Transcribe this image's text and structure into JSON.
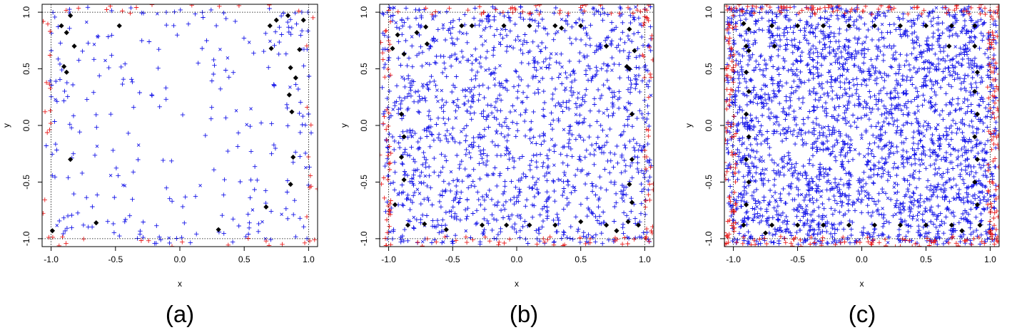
{
  "figure": {
    "colors": {
      "interior": "#1515e8",
      "outside": "#ea1e1e",
      "selected": "#000000",
      "frame": "#000000"
    }
  },
  "chart_data": [
    {
      "type": "scatter",
      "panel_label": "(a)",
      "xlabel": "x",
      "ylabel": "y",
      "xlim": [
        -1.07,
        1.07
      ],
      "ylim": [
        -1.07,
        1.07
      ],
      "xticks": [
        "-1.0",
        "-0.5",
        "0.0",
        "0.5",
        "1.0"
      ],
      "yticks": [
        "-1.0",
        "-0.5",
        "0.0",
        "0.5",
        "1.0"
      ],
      "reference_lines": {
        "x": [
          -1.0,
          1.0
        ],
        "y": [
          -1.0,
          1.0
        ],
        "style": "dotted"
      },
      "grid": false,
      "legend": "none",
      "point_count_estimate": {
        "interior": 290,
        "outside": 55
      },
      "selected_points": [
        [
          -0.92,
          0.88
        ],
        [
          -0.88,
          0.82
        ],
        [
          -0.85,
          0.97
        ],
        [
          -0.82,
          0.7
        ],
        [
          -0.9,
          0.52
        ],
        [
          -0.88,
          0.47
        ],
        [
          -0.47,
          0.88
        ],
        [
          -0.85,
          -0.3
        ],
        [
          -0.65,
          -0.86
        ],
        [
          -0.99,
          -0.93
        ],
        [
          0.67,
          -0.72
        ],
        [
          0.3,
          -0.92
        ],
        [
          0.86,
          0.51
        ],
        [
          0.9,
          0.42
        ],
        [
          0.85,
          0.27
        ],
        [
          0.87,
          0.12
        ],
        [
          0.88,
          -0.28
        ],
        [
          0.86,
          -0.52
        ],
        [
          0.93,
          0.67
        ],
        [
          0.96,
          0.93
        ],
        [
          0.7,
          0.88
        ],
        [
          0.75,
          0.93
        ],
        [
          0.71,
          0.68
        ],
        [
          0.84,
          0.97
        ]
      ]
    },
    {
      "type": "scatter",
      "panel_label": "(b)",
      "xlabel": "x",
      "ylabel": "y",
      "xlim": [
        -1.07,
        1.07
      ],
      "ylim": [
        -1.07,
        1.07
      ],
      "xticks": [
        "-1.0",
        "-0.5",
        "0.0",
        "0.5",
        "1.0"
      ],
      "yticks": [
        "-1.0",
        "-0.5",
        "0.0",
        "0.5",
        "1.0"
      ],
      "reference_lines": {
        "x": [
          -1.0,
          1.0
        ],
        "y": [
          -1.0,
          1.0
        ],
        "style": "dotted"
      },
      "grid": false,
      "legend": "none",
      "point_count_estimate": {
        "interior": 1400,
        "outside": 160
      },
      "selected_points": [
        [
          -0.97,
          0.68
        ],
        [
          -0.88,
          0.63
        ],
        [
          -0.93,
          0.8
        ],
        [
          -0.71,
          0.87
        ],
        [
          -0.7,
          0.72
        ],
        [
          -0.78,
          0.82
        ],
        [
          -0.43,
          0.88
        ],
        [
          -0.35,
          0.88
        ],
        [
          -0.1,
          0.88
        ],
        [
          0.1,
          0.88
        ],
        [
          0.3,
          0.88
        ],
        [
          0.35,
          0.86
        ],
        [
          0.5,
          0.88
        ],
        [
          0.7,
          0.7
        ],
        [
          0.88,
          0.85
        ],
        [
          0.88,
          0.5
        ],
        [
          0.86,
          0.52
        ],
        [
          0.92,
          0.66
        ],
        [
          -0.88,
          -0.1
        ],
        [
          -0.9,
          -0.28
        ],
        [
          -0.88,
          -0.48
        ],
        [
          -0.9,
          0.1
        ],
        [
          0.9,
          0.1
        ],
        [
          0.9,
          -0.3
        ],
        [
          0.88,
          -0.52
        ],
        [
          0.9,
          -0.68
        ],
        [
          -0.95,
          -0.7
        ],
        [
          -0.85,
          -0.88
        ],
        [
          -0.72,
          -0.87
        ],
        [
          -0.55,
          -0.92
        ],
        [
          -0.27,
          -0.88
        ],
        [
          -0.08,
          -0.88
        ],
        [
          0.1,
          -0.88
        ],
        [
          0.3,
          -0.88
        ],
        [
          0.5,
          -0.85
        ],
        [
          0.7,
          -0.88
        ],
        [
          0.87,
          -0.85
        ],
        [
          0.95,
          -0.88
        ],
        [
          0.78,
          -0.93
        ]
      ]
    },
    {
      "type": "scatter",
      "panel_label": "(c)",
      "xlabel": "x",
      "ylabel": "y",
      "xlim": [
        -1.07,
        1.07
      ],
      "ylim": [
        -1.07,
        1.07
      ],
      "xticks": [
        "-1.0",
        "-0.5",
        "0.0",
        "0.5",
        "1.0"
      ],
      "yticks": [
        "-1.0",
        "-0.5",
        "0.0",
        "0.5",
        "1.0"
      ],
      "reference_lines": {
        "x": [
          -1.0,
          1.0
        ],
        "y": [
          -1.0,
          1.0
        ],
        "style": "dotted"
      },
      "grid": false,
      "legend": "none",
      "point_count_estimate": {
        "interior": 2600,
        "outside": 330
      },
      "selected_points": [
        [
          -0.92,
          0.9
        ],
        [
          -0.88,
          0.85
        ],
        [
          -0.9,
          0.7
        ],
        [
          -0.88,
          0.66
        ],
        [
          -0.7,
          0.88
        ],
        [
          -0.68,
          0.7
        ],
        [
          -0.5,
          0.88
        ],
        [
          -0.3,
          0.88
        ],
        [
          -0.1,
          0.88
        ],
        [
          0.1,
          0.88
        ],
        [
          0.3,
          0.88
        ],
        [
          0.5,
          0.88
        ],
        [
          0.7,
          0.88
        ],
        [
          0.88,
          0.88
        ],
        [
          0.68,
          0.7
        ],
        [
          0.88,
          0.7
        ],
        [
          -0.9,
          0.47
        ],
        [
          -0.88,
          0.3
        ],
        [
          -0.9,
          0.1
        ],
        [
          -0.88,
          -0.1
        ],
        [
          -0.9,
          -0.3
        ],
        [
          -0.88,
          -0.5
        ],
        [
          -0.9,
          -0.7
        ],
        [
          0.9,
          0.47
        ],
        [
          0.88,
          0.3
        ],
        [
          0.9,
          0.1
        ],
        [
          0.88,
          -0.1
        ],
        [
          0.9,
          -0.3
        ],
        [
          0.88,
          -0.5
        ],
        [
          0.9,
          -0.7
        ],
        [
          -0.92,
          -0.88
        ],
        [
          -0.7,
          -0.88
        ],
        [
          -0.5,
          -0.88
        ],
        [
          -0.3,
          -0.88
        ],
        [
          -0.1,
          -0.88
        ],
        [
          0.1,
          -0.88
        ],
        [
          0.3,
          -0.88
        ],
        [
          0.5,
          -0.88
        ],
        [
          0.7,
          -0.88
        ],
        [
          0.92,
          -0.88
        ],
        [
          -0.75,
          -0.95
        ],
        [
          0.78,
          -0.93
        ]
      ]
    }
  ]
}
